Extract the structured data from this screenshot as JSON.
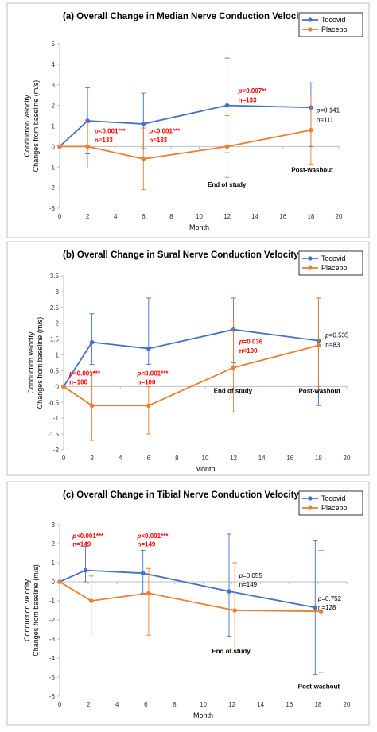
{
  "colors": {
    "tocovid": "#4472c4",
    "placebo": "#ed7d31",
    "significant": "#ff0000"
  },
  "chart_data": [
    {
      "type": "line",
      "title": "(a) Overall Change in Median Nerve Conduction Velocity",
      "xlabel": "Month",
      "ylabel_line1": "Conduction velocity",
      "ylabel_line2": "Changes from baseline (m/s)",
      "xlim": [
        0,
        20
      ],
      "xticks": [
        0,
        2,
        4,
        6,
        8,
        10,
        12,
        14,
        16,
        18,
        20
      ],
      "ylim": [
        -3,
        5
      ],
      "yticks": [
        -3,
        -2,
        -1,
        0,
        1,
        2,
        3,
        4,
        5
      ],
      "legend_position": "top-right",
      "series": [
        {
          "name": "Tocovid",
          "color": "#4472c4",
          "x": [
            0,
            2,
            6,
            12,
            18
          ],
          "y": [
            0,
            1.25,
            1.1,
            2.0,
            1.9
          ],
          "err_high": [
            0,
            2.85,
            2.6,
            4.3,
            3.1
          ],
          "err_low": [
            0,
            -0.35,
            -0.1,
            -0.3,
            0.0
          ]
        },
        {
          "name": "Placebo",
          "color": "#ed7d31",
          "x": [
            0,
            2,
            6,
            12,
            18
          ],
          "y": [
            0,
            0,
            -0.6,
            0,
            0.8
          ],
          "err_high": [
            0,
            1.15,
            0.9,
            1.5,
            2.5
          ],
          "err_low": [
            0,
            -1.05,
            -2.1,
            -1.5,
            -0.85
          ]
        }
      ],
      "annotations": [
        {
          "kind": "red",
          "x": 2.5,
          "y": 0.65,
          "text": "p<0.001***"
        },
        {
          "kind": "red",
          "x": 2.5,
          "y": 0.2,
          "text": "n=133"
        },
        {
          "kind": "red",
          "x": 6.4,
          "y": 0.65,
          "text": "p<0.001***"
        },
        {
          "kind": "red",
          "x": 6.4,
          "y": 0.2,
          "text": "n=133"
        },
        {
          "kind": "red",
          "x": 12.8,
          "y": 2.6,
          "text": "p=0.007**"
        },
        {
          "kind": "red",
          "x": 12.8,
          "y": 2.15,
          "text": "n=133"
        },
        {
          "kind": "black",
          "x": 18.4,
          "y": 1.65,
          "text": "p=0.141"
        },
        {
          "kind": "black",
          "x": 18.4,
          "y": 1.2,
          "text": "n=111"
        },
        {
          "kind": "bold",
          "x": 10.6,
          "y": -1.95,
          "text": "End of study"
        },
        {
          "kind": "bold",
          "x": 16.6,
          "y": -1.25,
          "text": "Post-washout"
        }
      ]
    },
    {
      "type": "line",
      "title": "(b) Overall Change in Sural Nerve Conduction Velocity",
      "xlabel": "Month",
      "ylabel_line1": "Conduction velocity",
      "ylabel_line2": "Changes from baseline (m/s)",
      "xlim": [
        0,
        20
      ],
      "xticks": [
        0,
        2,
        4,
        6,
        8,
        10,
        12,
        14,
        16,
        18,
        20
      ],
      "ylim": [
        -2,
        3.5
      ],
      "yticks": [
        -2,
        -1.5,
        -1,
        -0.5,
        0,
        0.5,
        1,
        1.5,
        2,
        2.5,
        3,
        3.5
      ],
      "legend_position": "top-right",
      "series": [
        {
          "name": "Tocovid",
          "color": "#4472c4",
          "x": [
            0,
            2,
            6,
            12,
            18
          ],
          "y": [
            0,
            1.4,
            1.2,
            1.8,
            1.45
          ],
          "err_high": [
            0,
            2.3,
            2.8,
            2.8,
            2.8
          ],
          "err_low": [
            0,
            0.7,
            0.7,
            0.75,
            -0.6
          ]
        },
        {
          "name": "Placebo",
          "color": "#ed7d31",
          "x": [
            0,
            2,
            6,
            12,
            18
          ],
          "y": [
            0,
            -0.6,
            -0.6,
            0.6,
            1.3
          ],
          "err_high": [
            0,
            0.45,
            0.0,
            2.1,
            2.8
          ],
          "err_low": [
            0,
            -1.7,
            -1.5,
            -0.8,
            0.0
          ]
        }
      ],
      "annotations": [
        {
          "kind": "red",
          "x": 0.4,
          "y": 0.35,
          "text": "p<0.001***"
        },
        {
          "kind": "red",
          "x": 0.4,
          "y": 0.07,
          "text": "n=100"
        },
        {
          "kind": "red",
          "x": 5.2,
          "y": 0.35,
          "text": "p<0.001***"
        },
        {
          "kind": "red",
          "x": 5.2,
          "y": 0.07,
          "text": "n=100"
        },
        {
          "kind": "red",
          "x": 12.4,
          "y": 1.35,
          "text": "p=0.036"
        },
        {
          "kind": "red",
          "x": 12.4,
          "y": 1.07,
          "text": "n=100"
        },
        {
          "kind": "black",
          "x": 18.5,
          "y": 1.55,
          "text": "p=0.535"
        },
        {
          "kind": "black",
          "x": 18.5,
          "y": 1.25,
          "text": "n=83"
        },
        {
          "kind": "bold",
          "x": 10.6,
          "y": -0.2,
          "text": "End of study"
        },
        {
          "kind": "bold",
          "x": 16.6,
          "y": -0.2,
          "text": "Post-washout"
        }
      ]
    },
    {
      "type": "line",
      "title": "(c) Overall Change in Tibial Nerve Conduction Velocity",
      "xlabel": "Month",
      "ylabel_line1": "Conduction velocity",
      "ylabel_line2": "Changes from baseline (m/s)",
      "xlim": [
        0,
        20
      ],
      "xticks": [
        0,
        2,
        4,
        6,
        8,
        10,
        12,
        14,
        16,
        18,
        20
      ],
      "ylim": [
        -6,
        3
      ],
      "yticks": [
        -6,
        -5,
        -4,
        -3,
        -2,
        -1,
        0,
        1,
        2,
        3
      ],
      "legend_position": "top-right",
      "series": [
        {
          "name": "Tocovid",
          "color": "#4472c4",
          "x": [
            0,
            1.8,
            5.8,
            11.8,
            17.8
          ],
          "y": [
            0,
            0.6,
            0.45,
            -0.5,
            -1.35
          ],
          "err_high": [
            0,
            1.85,
            1.65,
            2.5,
            2.15
          ],
          "err_low": [
            0,
            0.0,
            -0.6,
            -2.85,
            -4.85
          ]
        },
        {
          "name": "Placebo",
          "color": "#ed7d31",
          "x": [
            0,
            2.2,
            6.2,
            12.2,
            18.2
          ],
          "y": [
            0,
            -1.0,
            -0.6,
            -1.5,
            -1.55
          ],
          "err_high": [
            0,
            0.3,
            0.7,
            1.0,
            1.65
          ],
          "err_low": [
            0,
            -2.9,
            -2.8,
            -3.7,
            -4.75
          ]
        }
      ],
      "annotations": [
        {
          "kind": "red",
          "x": 0.9,
          "y": 2.3,
          "text": "p<0.001***"
        },
        {
          "kind": "red",
          "x": 0.9,
          "y": 1.85,
          "text": "n=149"
        },
        {
          "kind": "red",
          "x": 5.4,
          "y": 2.3,
          "text": "p<0.001***"
        },
        {
          "kind": "red",
          "x": 5.4,
          "y": 1.85,
          "text": "n=149"
        },
        {
          "kind": "black",
          "x": 12.5,
          "y": 0.2,
          "text": "p=0.055"
        },
        {
          "kind": "black",
          "x": 12.5,
          "y": -0.25,
          "text": "n=149"
        },
        {
          "kind": "black",
          "x": 18.0,
          "y": -1.0,
          "text": "p=0.752"
        },
        {
          "kind": "black",
          "x": 18.0,
          "y": -1.45,
          "text": "n=128"
        },
        {
          "kind": "bold",
          "x": 10.6,
          "y": -3.75,
          "text": "End of study"
        },
        {
          "kind": "bold",
          "x": 16.6,
          "y": -5.6,
          "text": "Post-washout"
        }
      ]
    }
  ]
}
